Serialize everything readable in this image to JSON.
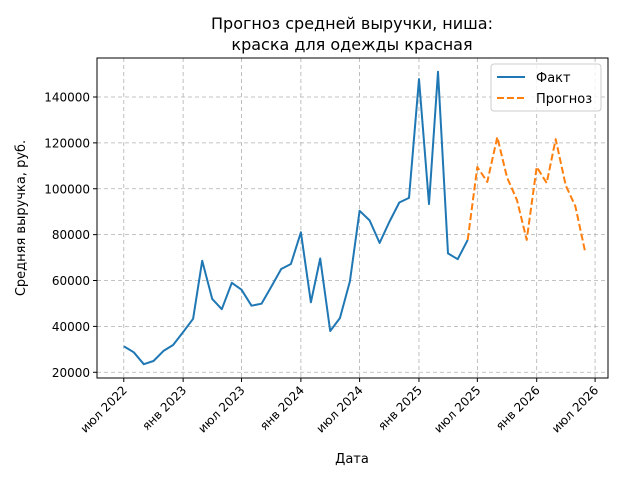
{
  "chart_data": {
    "type": "line",
    "title_lines": [
      "Прогноз средней выручки, ниша:",
      "краска для одежды красная"
    ],
    "xlabel": "Дата",
    "ylabel": "Средняя выручка, руб.",
    "x_tick_labels": [
      {
        "date": "2022-07-01",
        "label": "июл 2022"
      },
      {
        "date": "2023-01-01",
        "label": "янв 2023"
      },
      {
        "date": "2023-07-01",
        "label": "июл 2023"
      },
      {
        "date": "2024-01-01",
        "label": "янв 2024"
      },
      {
        "date": "2024-07-01",
        "label": "июл 2024"
      },
      {
        "date": "2025-01-01",
        "label": "янв 2025"
      },
      {
        "date": "2025-07-01",
        "label": "июл 2025"
      },
      {
        "date": "2026-01-01",
        "label": "янв 2026"
      },
      {
        "date": "2026-07-01",
        "label": "июл 2026"
      }
    ],
    "y_ticks": [
      20000,
      40000,
      60000,
      80000,
      100000,
      120000,
      140000
    ],
    "xlim": [
      "2022-04-09",
      "2026-08-10"
    ],
    "ylim": [
      17500,
      157000
    ],
    "grid": true,
    "legend_position": "top-right",
    "series": [
      {
        "name": "Факт",
        "color": "#1f77b4",
        "style": "solid",
        "points": [
          {
            "x": "2022-07-01",
            "y": 31300
          },
          {
            "x": "2022-08-01",
            "y": 28700
          },
          {
            "x": "2022-09-01",
            "y": 23500
          },
          {
            "x": "2022-10-01",
            "y": 24900
          },
          {
            "x": "2022-11-01",
            "y": 29300
          },
          {
            "x": "2022-12-01",
            "y": 31900
          },
          {
            "x": "2023-01-01",
            "y": 37500
          },
          {
            "x": "2023-02-01",
            "y": 43300
          },
          {
            "x": "2023-03-01",
            "y": 68600
          },
          {
            "x": "2023-04-01",
            "y": 52000
          },
          {
            "x": "2023-05-01",
            "y": 47500
          },
          {
            "x": "2023-06-01",
            "y": 59000
          },
          {
            "x": "2023-07-01",
            "y": 56000
          },
          {
            "x": "2023-08-01",
            "y": 49000
          },
          {
            "x": "2023-09-01",
            "y": 49900
          },
          {
            "x": "2023-10-01",
            "y": 57200
          },
          {
            "x": "2023-11-01",
            "y": 65000
          },
          {
            "x": "2023-12-01",
            "y": 67200
          },
          {
            "x": "2024-01-01",
            "y": 81000
          },
          {
            "x": "2024-02-01",
            "y": 50500
          },
          {
            "x": "2024-03-01",
            "y": 69600
          },
          {
            "x": "2024-04-01",
            "y": 38000
          },
          {
            "x": "2024-05-01",
            "y": 43600
          },
          {
            "x": "2024-06-01",
            "y": 59600
          },
          {
            "x": "2024-07-01",
            "y": 90400
          },
          {
            "x": "2024-08-01",
            "y": 86200
          },
          {
            "x": "2024-09-01",
            "y": 76400
          },
          {
            "x": "2024-10-01",
            "y": 85500
          },
          {
            "x": "2024-11-01",
            "y": 94000
          },
          {
            "x": "2024-12-01",
            "y": 96000
          },
          {
            "x": "2025-01-01",
            "y": 147800
          },
          {
            "x": "2025-02-01",
            "y": 93300
          },
          {
            "x": "2025-03-01",
            "y": 151000
          },
          {
            "x": "2025-04-01",
            "y": 71800
          },
          {
            "x": "2025-05-01",
            "y": 69300
          },
          {
            "x": "2025-06-01",
            "y": 77700
          }
        ]
      },
      {
        "name": "Прогноз",
        "color": "#ff7f0e",
        "style": "dashed",
        "points": [
          {
            "x": "2025-06-01",
            "y": 77700
          },
          {
            "x": "2025-07-01",
            "y": 109500
          },
          {
            "x": "2025-08-01",
            "y": 103000
          },
          {
            "x": "2025-09-01",
            "y": 122500
          },
          {
            "x": "2025-10-01",
            "y": 105000
          },
          {
            "x": "2025-11-01",
            "y": 95000
          },
          {
            "x": "2025-12-01",
            "y": 77700
          },
          {
            "x": "2026-01-01",
            "y": 109500
          },
          {
            "x": "2026-02-01",
            "y": 102500
          },
          {
            "x": "2026-03-01",
            "y": 121600
          },
          {
            "x": "2026-04-01",
            "y": 101500
          },
          {
            "x": "2026-05-01",
            "y": 92300
          },
          {
            "x": "2026-06-01",
            "y": 72000
          }
        ]
      }
    ]
  }
}
